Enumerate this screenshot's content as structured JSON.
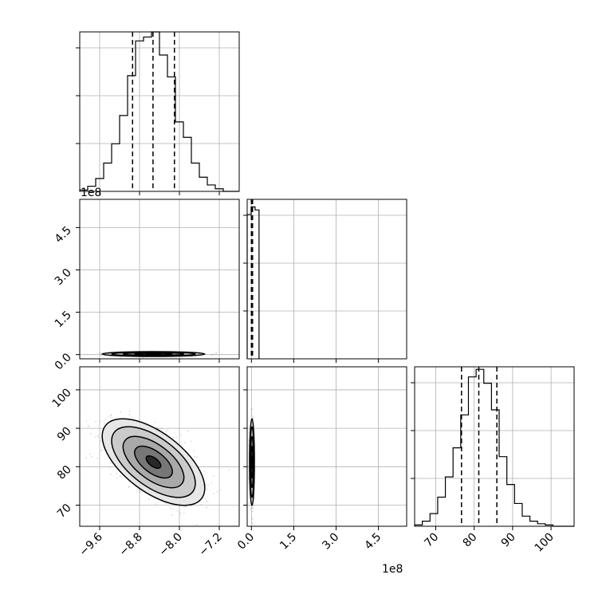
{
  "colors": {
    "mark": "#000000",
    "grid": "#b0b0b0",
    "frame": "#000000",
    "scatter": "#9a9a9a"
  },
  "chart_data": {
    "type": "corner",
    "grid": true,
    "offset_labels": {
      "p1_y": "1e8",
      "p1_x": "1e8"
    },
    "params": [
      {
        "range": [
          -10.0,
          -6.8
        ],
        "ticks": [
          -9.6,
          -8.8,
          -8.0,
          -7.2
        ],
        "tick_labels": [
          "−9.6",
          "−8.8",
          "−8.0",
          "−7.2"
        ]
      },
      {
        "range": [
          -0.15,
          5.5
        ],
        "ticks": [
          0.0,
          1.5,
          3.0,
          4.5
        ],
        "tick_labels": [
          "0.0",
          "1.5",
          "3.0",
          "4.5"
        ]
      },
      {
        "range": [
          64.5,
          106
        ],
        "ticks": [
          70,
          80,
          90,
          100
        ],
        "tick_labels": [
          "70",
          "80",
          "90",
          "100"
        ]
      }
    ],
    "histograms": [
      {
        "param": 0,
        "bin_edges": [
          -10.0,
          -9.84,
          -9.68,
          -9.52,
          -9.36,
          -9.2,
          -9.04,
          -8.88,
          -8.72,
          -8.56,
          -8.4,
          -8.24,
          -8.08,
          -7.92,
          -7.76,
          -7.6,
          -7.44,
          -7.28,
          -7.12,
          -6.96,
          -6.8
        ],
        "counts": [
          1,
          4,
          10,
          22,
          37,
          59,
          90,
          117,
          120,
          124,
          106,
          89,
          54,
          42,
          22,
          11,
          5,
          2,
          0,
          0
        ],
        "ymax": 124,
        "quantiles": [
          -8.94,
          -8.53,
          -8.1
        ]
      },
      {
        "param": 1,
        "bin_edges": [
          -0.15,
          -0.01,
          0.13,
          0.27
        ],
        "counts": [
          95,
          100,
          98
        ],
        "ymax": 105,
        "quantiles": [
          0.0,
          0.02,
          0.04
        ]
      },
      {
        "param": 2,
        "bin_edges": [
          64.5,
          66.5,
          68.5,
          70.5,
          72.5,
          74.5,
          76.5,
          78.5,
          80.5,
          82.5,
          84.5,
          86.5,
          88.5,
          90.5,
          92.5,
          94.5,
          96.5,
          98.5,
          100.5,
          102.5,
          104.5,
          106
        ],
        "counts": [
          1,
          4,
          10,
          23,
          39,
          62,
          88,
          118,
          124,
          113,
          92,
          55,
          33,
          18,
          8,
          4,
          2,
          1,
          0,
          0,
          0
        ],
        "ymax": 126,
        "quantiles": [
          76.7,
          81.2,
          85.9
        ]
      }
    ],
    "pairs": [
      {
        "x_param": 0,
        "y_param": 1,
        "center": [
          -8.52,
          0.02
        ],
        "x_std": 0.42,
        "y_std": 0.035,
        "corr": 0.0,
        "n_points": 700
      },
      {
        "x_param": 0,
        "y_param": 2,
        "center": [
          -8.52,
          81.2
        ],
        "x_std": 0.42,
        "y_std": 4.6,
        "corr": -0.6,
        "n_points": 2200
      },
      {
        "x_param": 1,
        "y_param": 2,
        "center": [
          0.02,
          81.2
        ],
        "x_std": 0.035,
        "y_std": 4.6,
        "corr": 0.0,
        "n_points": 700
      }
    ]
  }
}
